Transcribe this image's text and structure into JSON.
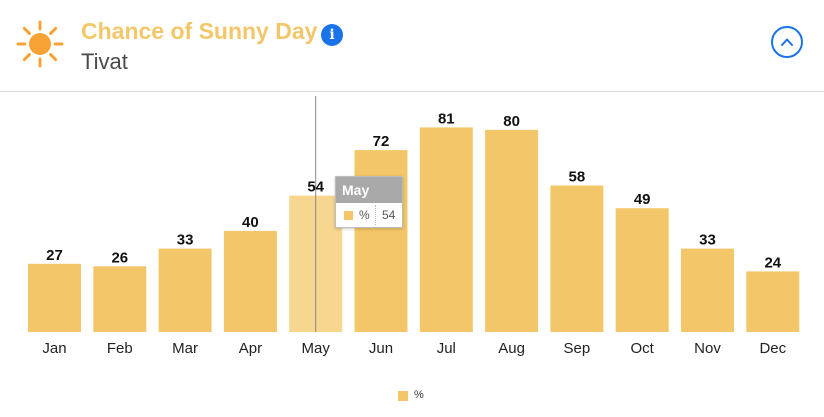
{
  "header": {
    "title": "Chance of Sunny Day",
    "subtitle": "Tivat",
    "info_icon": "info-icon",
    "info_glyph": "i",
    "sun_icon": "sun-icon",
    "collapse_icon": "chevron-up-icon"
  },
  "colors": {
    "accent": "#f3c769",
    "highlight": "#f7d690",
    "title": "#f3c769",
    "sun": "#f7a234",
    "button": "#1a73e8"
  },
  "tooltip": {
    "month": "May",
    "unit": "%",
    "value": "54"
  },
  "legend": {
    "label": "%"
  },
  "chart_data": {
    "type": "bar",
    "categories": [
      "Jan",
      "Feb",
      "Mar",
      "Apr",
      "May",
      "Jun",
      "Jul",
      "Aug",
      "Sep",
      "Oct",
      "Nov",
      "Dec"
    ],
    "series": [
      {
        "name": "%",
        "values": [
          27,
          26,
          33,
          40,
          54,
          72,
          81,
          80,
          58,
          49,
          33,
          24
        ]
      }
    ],
    "highlighted_category": "May",
    "ylim": [
      0,
      95
    ],
    "grid": false,
    "legend": "bottom-center",
    "title": "",
    "xlabel": "",
    "ylabel": ""
  }
}
